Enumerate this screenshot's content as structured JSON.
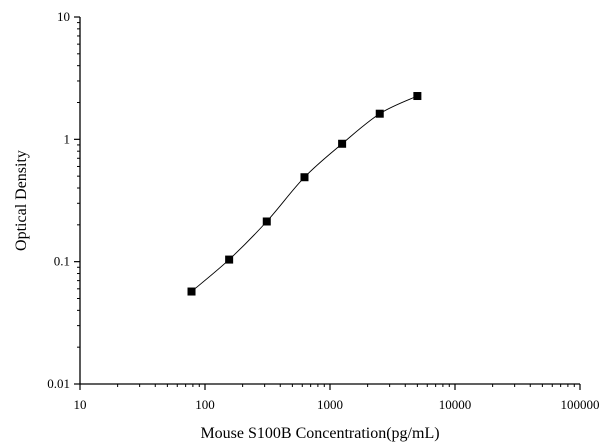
{
  "chart_data": {
    "type": "scatter",
    "xlabel": "Mouse S100B Concentration(pg/mL)",
    "ylabel": "Optical Density",
    "xscale": "log",
    "yscale": "log",
    "xlim": [
      10,
      100000
    ],
    "ylim": [
      0.01,
      10
    ],
    "grid": false,
    "legend": "none",
    "x_ticks": [
      {
        "value": 10,
        "label": "10"
      },
      {
        "value": 100,
        "label": "100"
      },
      {
        "value": 1000,
        "label": "1000"
      },
      {
        "value": 10000,
        "label": "10000"
      },
      {
        "value": 100000,
        "label": "100000"
      }
    ],
    "y_ticks": [
      {
        "value": 0.01,
        "label": "0.01"
      },
      {
        "value": 0.1,
        "label": "0.1"
      },
      {
        "value": 1,
        "label": "1"
      },
      {
        "value": 10,
        "label": "10"
      }
    ],
    "series": [
      {
        "x": [
          78,
          156,
          312,
          625,
          1250,
          2500,
          5000
        ],
        "y": [
          0.057,
          0.104,
          0.213,
          0.49,
          0.92,
          1.62,
          2.26
        ],
        "marker": "square",
        "line": "smooth",
        "color": "#000000"
      }
    ]
  }
}
